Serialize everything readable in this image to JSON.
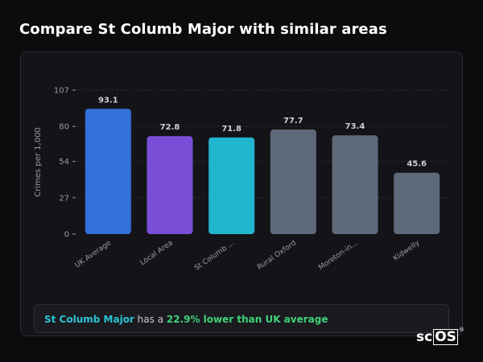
{
  "page": {
    "title": "Compare St Columb Major with similar areas"
  },
  "chart_data": {
    "type": "bar",
    "ylabel": "Crimes per 1,000",
    "xlabel": "",
    "yticks": [
      0,
      27,
      54,
      80,
      107
    ],
    "ylim": [
      0,
      107
    ],
    "grid": true,
    "categories": [
      "UK Average",
      "Local Area",
      "St Columb ...",
      "Rural Oxford",
      "Moreton-in...",
      "Kidwelly"
    ],
    "values": [
      93.1,
      72.8,
      71.8,
      77.7,
      73.4,
      45.6
    ],
    "value_labels": [
      "93.1",
      "72.8",
      "71.8",
      "77.7",
      "73.4",
      "45.6"
    ],
    "colors": [
      "#3471d8",
      "#7a4fd8",
      "#21b6cf",
      "#5e6a7b",
      "#5e6a7b",
      "#5e6a7b"
    ]
  },
  "summary": {
    "area": "St Columb Major",
    "middle": " has a ",
    "comparison": "22.9% lower than UK average"
  },
  "logo": {
    "text_a": "sc",
    "text_b": "OS",
    "reg": "®"
  },
  "colors": {
    "background": "#0c0c0f",
    "card": "#141418",
    "axis_text": "#9a9aa2",
    "value_text": "#cfcfd4",
    "grid": "#2a2a30"
  }
}
